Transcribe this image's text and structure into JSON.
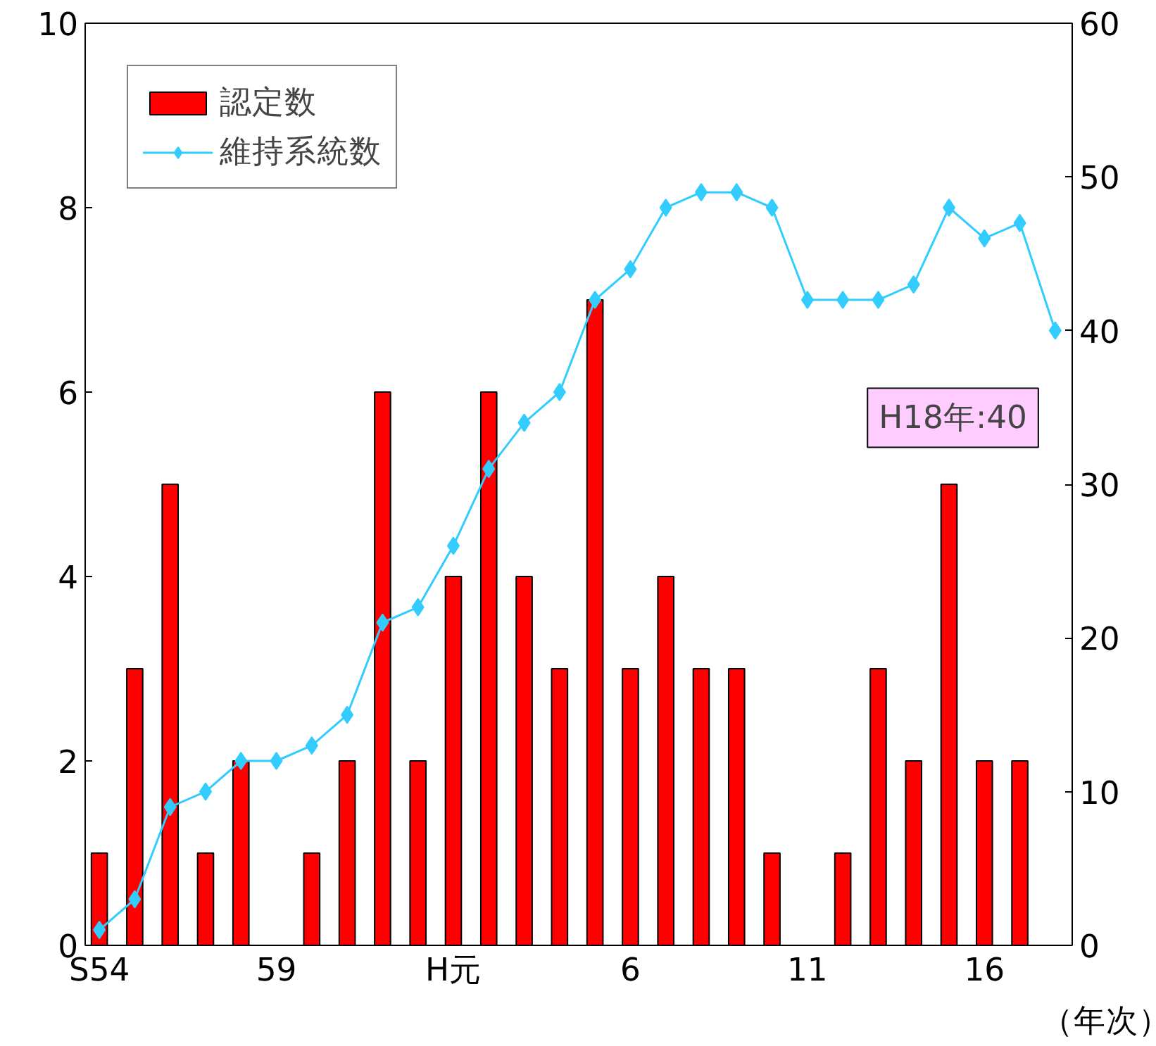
{
  "chart_data": {
    "type": "bar",
    "xlabel": "（年次）",
    "categories": [
      "S54",
      null,
      null,
      null,
      null,
      "59",
      null,
      null,
      null,
      null,
      "H元",
      null,
      null,
      null,
      null,
      "6",
      null,
      null,
      null,
      null,
      "11",
      null,
      null,
      null,
      null,
      "16",
      null,
      null
    ],
    "series": [
      {
        "name": "認定数",
        "color": "#ff0000",
        "values": [
          1,
          3,
          5,
          1,
          2,
          0,
          1,
          2,
          6,
          2,
          4,
          6,
          4,
          3,
          7,
          3,
          4,
          3,
          3,
          1,
          0,
          1,
          3,
          2,
          5,
          2,
          2,
          0
        ]
      },
      {
        "name": "維持系統数",
        "type": "line",
        "axis": "y2",
        "color": "#33ccff",
        "marker": "diamond",
        "values": [
          1,
          3,
          9,
          10,
          12,
          12,
          13,
          15,
          21,
          22,
          26,
          31,
          34,
          36,
          42,
          44,
          48,
          49,
          49,
          48,
          42,
          42,
          42,
          43,
          48,
          46,
          47,
          40
        ]
      }
    ],
    "ylim": [
      0,
      10
    ],
    "yticks": [
      0,
      2,
      4,
      6,
      8,
      10
    ],
    "y2lim": [
      0,
      60
    ],
    "y2ticks": [
      0,
      10,
      20,
      30,
      40,
      50,
      60
    ],
    "grid": false,
    "legend": "top left",
    "annotations": [
      "H18年:40"
    ]
  }
}
